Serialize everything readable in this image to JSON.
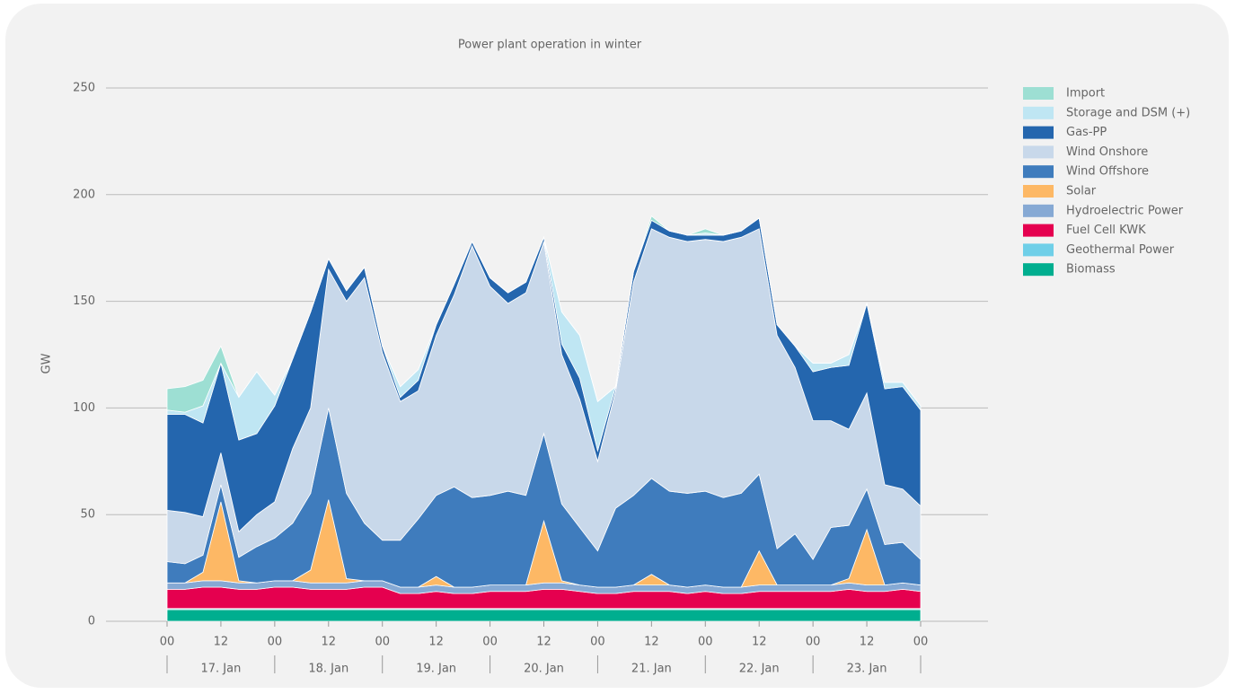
{
  "chart_data": {
    "type": "stacked-area",
    "title": "Power plant operation in winter",
    "ylabel": "GW",
    "x": [
      0,
      4,
      8,
      12,
      16,
      20,
      24,
      28,
      32,
      36,
      40,
      44,
      48,
      52,
      56,
      60,
      64,
      68,
      72,
      76,
      80,
      84,
      88,
      92,
      96,
      100,
      104,
      108,
      112,
      116,
      120,
      124,
      128,
      132,
      136,
      140,
      144,
      148,
      152,
      156,
      160,
      164,
      168
    ],
    "xlim": [
      0,
      168
    ],
    "xticks": [
      {
        "value": 0,
        "label": "00"
      },
      {
        "value": 12,
        "label": "12"
      },
      {
        "value": 24,
        "label": "00"
      },
      {
        "value": 36,
        "label": "12"
      },
      {
        "value": 48,
        "label": "00"
      },
      {
        "value": 60,
        "label": "12"
      },
      {
        "value": 72,
        "label": "00"
      },
      {
        "value": 84,
        "label": "12"
      },
      {
        "value": 96,
        "label": "00"
      },
      {
        "value": 108,
        "label": "12"
      },
      {
        "value": 120,
        "label": "00"
      },
      {
        "value": 132,
        "label": "12"
      },
      {
        "value": 144,
        "label": "00"
      },
      {
        "value": 156,
        "label": "12"
      },
      {
        "value": 168,
        "label": "00"
      }
    ],
    "days": [
      "17. Jan",
      "18. Jan",
      "19. Jan",
      "20. Jan",
      "21. Jan",
      "22. Jan",
      "23. Jan"
    ],
    "ylim": [
      0,
      250
    ],
    "yticks": [
      0,
      50,
      100,
      150,
      200,
      250
    ],
    "grid": true,
    "legend": "right",
    "series": [
      {
        "name": "Biomass",
        "color": "#00ae8f",
        "values": [
          5.5,
          5.5,
          5.5,
          5.5,
          5.5,
          5.5,
          5.5,
          5.5,
          5.5,
          5.5,
          5.5,
          5.5,
          5.5,
          5.5,
          5.5,
          5.5,
          5.5,
          5.5,
          5.5,
          5.5,
          5.5,
          5.5,
          5.5,
          5.5,
          5.5,
          5.5,
          5.5,
          5.5,
          5.5,
          5.5,
          5.5,
          5.5,
          5.5,
          5.5,
          5.5,
          5.5,
          5.5,
          5.5,
          5.5,
          5.5,
          5.5,
          5.5,
          5.5
        ]
      },
      {
        "name": "Geothermal Power",
        "color": "#6fcfe8",
        "values": [
          0.5,
          0.5,
          0.5,
          0.5,
          0.5,
          0.5,
          0.5,
          0.5,
          0.5,
          0.5,
          0.5,
          0.5,
          0.5,
          0.5,
          0.5,
          0.5,
          0.5,
          0.5,
          0.5,
          0.5,
          0.5,
          0.5,
          0.5,
          0.5,
          0.5,
          0.5,
          0.5,
          0.5,
          0.5,
          0.5,
          0.5,
          0.5,
          0.5,
          0.5,
          0.5,
          0.5,
          0.5,
          0.5,
          0.5,
          0.5,
          0.5,
          0.5,
          0.5
        ]
      },
      {
        "name": "Fuel Cell KWK",
        "color": "#e5004f",
        "values": [
          9,
          9,
          10,
          10,
          9,
          9,
          10,
          10,
          9,
          9,
          9,
          10,
          10,
          7,
          7,
          8,
          7,
          7,
          8,
          8,
          8,
          9,
          9,
          8,
          7,
          7,
          8,
          8,
          8,
          7,
          8,
          7,
          7,
          8,
          8,
          8,
          8,
          8,
          9,
          8,
          8,
          9,
          8
        ]
      },
      {
        "name": "Hydroelectric Power",
        "color": "#86a9d4",
        "values": [
          3,
          3,
          3,
          3,
          3,
          3,
          3,
          3,
          3,
          3,
          3,
          3,
          3,
          3,
          3,
          3,
          3,
          3,
          3,
          3,
          3,
          3,
          3,
          3,
          3,
          3,
          3,
          3,
          3,
          3,
          3,
          3,
          3,
          3,
          3,
          3,
          3,
          3,
          3,
          3,
          3,
          3,
          3
        ]
      },
      {
        "name": "Solar",
        "color": "#fdb865",
        "values": [
          0,
          0,
          4,
          37,
          1,
          0,
          0,
          0,
          6,
          39,
          2,
          0,
          0,
          0,
          0,
          4,
          0,
          0,
          0,
          0,
          0,
          29,
          1,
          0,
          0,
          0,
          0,
          5,
          0,
          0,
          0,
          0,
          0,
          16,
          0,
          0,
          0,
          0,
          2,
          26,
          0,
          0,
          0
        ]
      },
      {
        "name": "Wind Offshore",
        "color": "#3f7cbd",
        "values": [
          10,
          9,
          8,
          8,
          11,
          17,
          20,
          27,
          36,
          43,
          40,
          27,
          19,
          22,
          32,
          38,
          47,
          42,
          42,
          44,
          42,
          41,
          36,
          27,
          17,
          37,
          42,
          45,
          44,
          44,
          44,
          42,
          44,
          36,
          17,
          24,
          12,
          27,
          25,
          19,
          19,
          19,
          12
        ]
      },
      {
        "name": "Wind Onshore",
        "color": "#c8d8ea",
        "values": [
          24,
          24,
          18,
          15,
          12,
          15,
          17,
          35,
          40,
          65,
          90,
          115,
          88,
          65,
          60,
          75,
          90,
          118,
          98,
          88,
          95,
          90,
          70,
          60,
          42,
          55,
          100,
          117,
          119,
          118,
          118,
          120,
          120,
          115,
          100,
          78,
          65,
          50,
          45,
          45,
          28,
          25,
          25
        ]
      },
      {
        "name": "Gas-PP",
        "color": "#2466ae",
        "values": [
          45,
          46,
          44,
          42,
          43,
          38,
          45,
          42,
          45,
          5,
          5,
          5,
          3,
          2,
          5,
          5,
          5,
          2,
          4,
          5,
          5,
          2,
          5,
          10,
          5,
          2,
          5,
          4,
          3,
          3,
          2,
          3,
          3,
          5,
          5,
          10,
          23,
          25,
          30,
          42,
          45,
          48,
          45
        ]
      },
      {
        "name": "Storage and DSM (+)",
        "color": "#bfe6f3",
        "values": [
          2,
          1,
          8,
          0,
          20,
          29,
          5,
          0,
          0,
          0,
          0,
          0,
          0,
          5,
          5,
          0,
          0,
          0,
          0,
          0,
          0,
          0,
          15,
          20,
          23,
          0,
          0,
          0,
          0,
          0,
          1,
          0,
          0,
          0,
          0,
          0,
          4,
          2,
          5,
          0,
          3,
          2,
          2
        ]
      },
      {
        "name": "Import",
        "color": "#9ddfd3",
        "values": [
          10,
          12,
          12,
          8,
          0,
          0,
          0,
          0,
          0,
          0,
          0,
          0,
          0,
          0,
          0,
          0,
          0,
          0,
          0,
          0,
          0,
          0,
          0,
          0,
          0,
          0,
          0,
          2,
          0,
          0,
          2,
          0,
          0,
          0,
          0,
          0,
          0,
          0,
          0,
          0,
          0,
          0,
          0
        ]
      }
    ]
  }
}
